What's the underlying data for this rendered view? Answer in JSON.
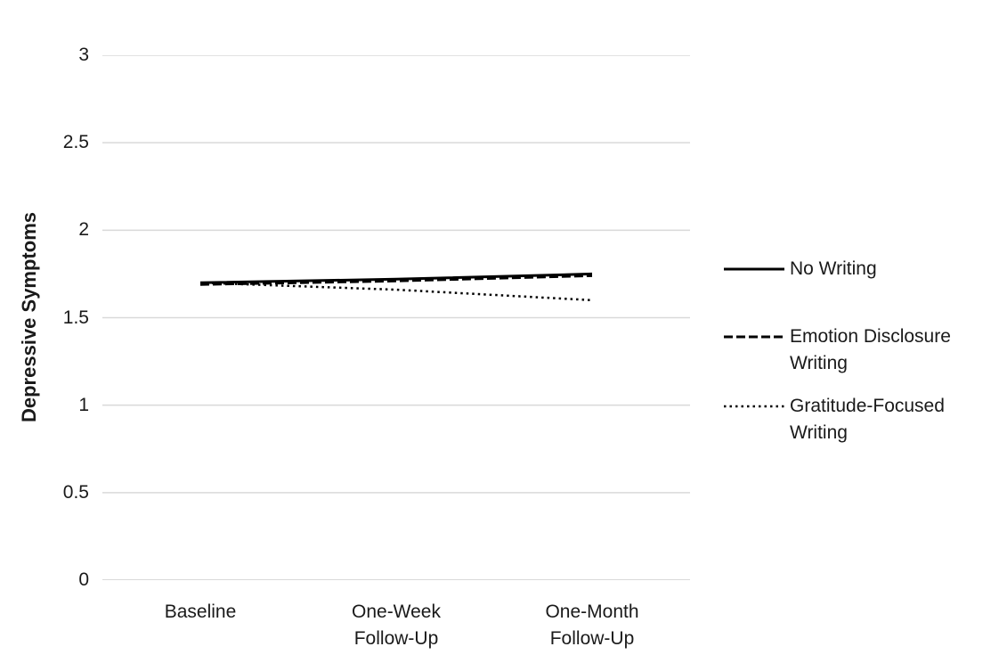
{
  "chart_data": {
    "type": "line",
    "title": "",
    "xlabel": "",
    "ylabel": "Depressive Symptoms",
    "ylim": [
      0,
      3
    ],
    "yticks": [
      {
        "value": 3,
        "label": "3"
      },
      {
        "value": 2.5,
        "label": "2.5"
      },
      {
        "value": 2,
        "label": "2"
      },
      {
        "value": 1.5,
        "label": "1.5"
      },
      {
        "value": 1,
        "label": "1"
      },
      {
        "value": 0.5,
        "label": "0.5"
      },
      {
        "value": 0,
        "label": "0"
      }
    ],
    "categories": [
      "Baseline",
      "One-Week\nFollow-Up",
      "One-Month\nFollow-Up"
    ],
    "series": [
      {
        "name": "No Writing",
        "line_style": "solid",
        "color": "#000000",
        "values": [
          1.7,
          1.72,
          1.75
        ]
      },
      {
        "name": "Emotion Disclosure Writing",
        "line_style": "dashed",
        "color": "#000000",
        "values": [
          1.69,
          1.71,
          1.74
        ]
      },
      {
        "name": "Gratitude-Focused Writing",
        "line_style": "dotted",
        "color": "#000000",
        "values": [
          1.7,
          1.66,
          1.6
        ]
      }
    ],
    "legend_position": "right",
    "grid": "horizontal",
    "gridline_color": "#d9d9d9",
    "axis_line_color": "#d9d9d9",
    "text_color": "#1a1a1a",
    "background_color": "#ffffff"
  }
}
